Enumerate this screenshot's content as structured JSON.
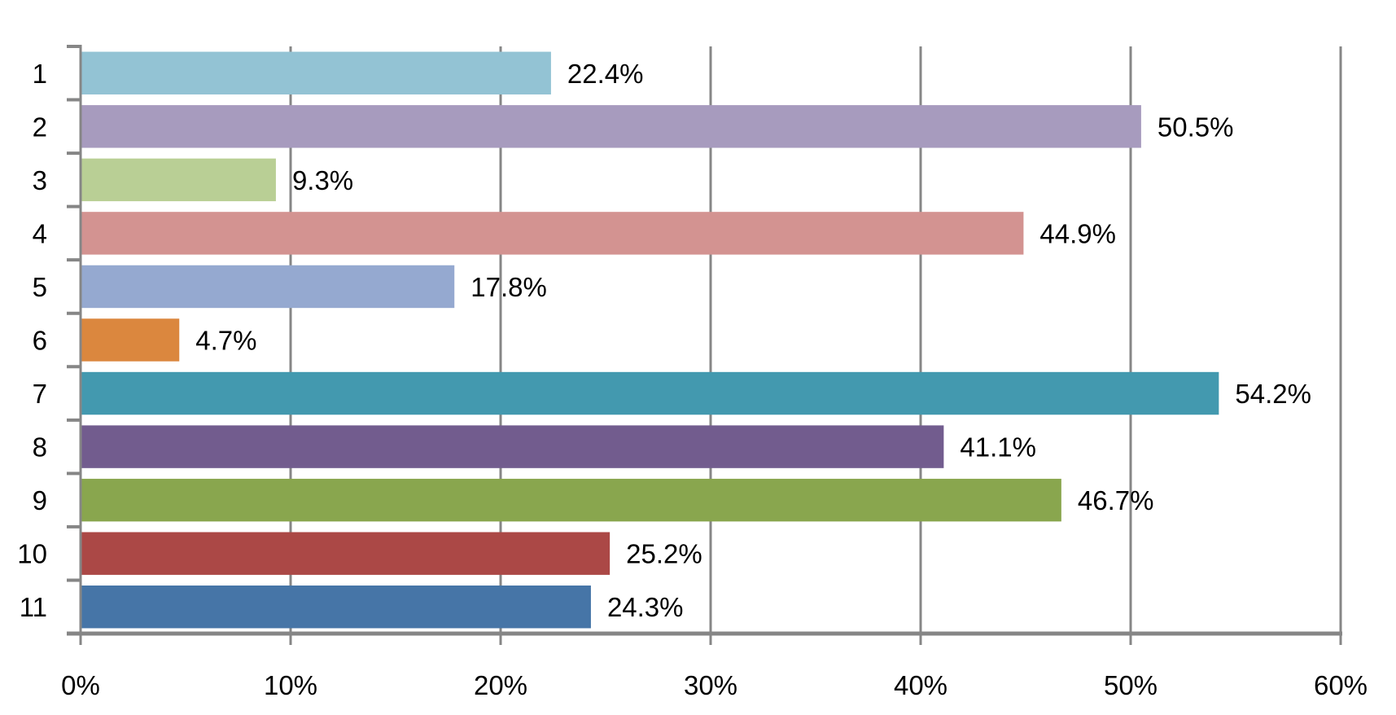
{
  "chart_data": {
    "type": "bar",
    "orientation": "horizontal",
    "title": "",
    "xlabel": "",
    "ylabel": "",
    "categories": [
      "1",
      "2",
      "3",
      "4",
      "5",
      "6",
      "7",
      "8",
      "9",
      "10",
      "11"
    ],
    "values": [
      22.4,
      50.5,
      9.3,
      44.9,
      17.8,
      4.7,
      54.2,
      41.1,
      46.7,
      25.2,
      24.3
    ],
    "data_labels": [
      "22.4%",
      "50.5%",
      "9.3%",
      "44.9%",
      "17.8%",
      "4.7%",
      "54.2%",
      "41.1%",
      "46.7%",
      "25.2%",
      "24.3%"
    ],
    "colors": [
      "#93C3D4",
      "#A79BBE",
      "#B9CF95",
      "#D39391",
      "#95A9D0",
      "#DB873E",
      "#4399AF",
      "#725C8E",
      "#89A64E",
      "#AB4846",
      "#4675A7"
    ],
    "xlim": [
      0,
      60
    ],
    "xticks": [
      0,
      10,
      20,
      30,
      40,
      50,
      60
    ],
    "xtick_labels": [
      "0%",
      "10%",
      "20%",
      "30%",
      "40%",
      "50%",
      "60%"
    ],
    "grid": true,
    "grid_color": "#868686",
    "legend": "none"
  }
}
